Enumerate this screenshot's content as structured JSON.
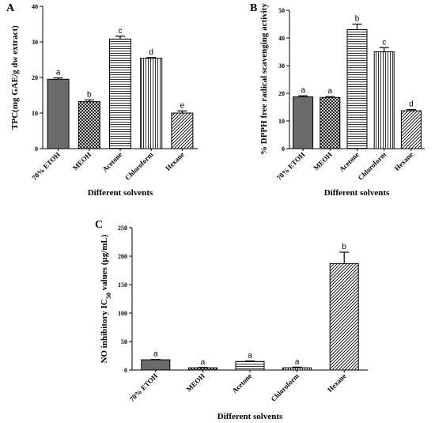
{
  "chart_data": [
    {
      "panel": "A",
      "type": "bar",
      "categories": [
        "70% ETOH",
        "MEOH",
        "Acetone",
        "Chloroform",
        "Hexane"
      ],
      "values": [
        19.5,
        13.2,
        30.8,
        25.4,
        10.0
      ],
      "errors": [
        0.4,
        0.5,
        0.8,
        0.2,
        0.6
      ],
      "labels": [
        "a",
        "b",
        "c",
        "d",
        "e"
      ],
      "patterns": [
        "solid",
        "crosshatch",
        "hlines",
        "vlines",
        "diagonal"
      ],
      "xlabel": "Different solvents",
      "ylabel": "TPC(mg GAE/g dw extract)",
      "ylim": [
        0,
        40
      ],
      "yticks": [
        0,
        10,
        20,
        30,
        40
      ]
    },
    {
      "panel": "B",
      "type": "bar",
      "categories": [
        "70% ETOH",
        "MEOH",
        "Acetone",
        "Chloroform",
        "Hexane"
      ],
      "values": [
        18.7,
        18.5,
        43.0,
        35.0,
        13.7
      ],
      "errors": [
        0.4,
        0.3,
        2.0,
        1.5,
        0.4
      ],
      "labels": [
        "a",
        "a",
        "b",
        "c",
        "d"
      ],
      "patterns": [
        "solid",
        "crosshatch",
        "hlines",
        "vlines",
        "diagonal"
      ],
      "xlabel": "Different solvents",
      "ylabel": "% DPPH free radical scavenging activity",
      "ylim": [
        0,
        50
      ],
      "yticks": [
        0,
        10,
        20,
        30,
        40,
        50
      ]
    },
    {
      "panel": "C",
      "type": "bar",
      "categories": [
        "70% ETOH",
        "MEOH",
        "Acetone",
        "Chloroform",
        "Hexane"
      ],
      "values": [
        18,
        4,
        15,
        4,
        187
      ],
      "errors": [
        0.5,
        0.5,
        1.0,
        1.0,
        20
      ],
      "labels": [
        "a",
        "a",
        "a",
        "a",
        "b"
      ],
      "patterns": [
        "solid",
        "crosshatch",
        "hlines",
        "vlines",
        "diagonal"
      ],
      "xlabel": "Different solvents",
      "ylabel": "NO inhibitory IC50 values (µg/mL)",
      "ylabel_main": "NO inhibitory IC",
      "ylabel_sub": "50",
      "ylabel_tail": " values (µg/mL)",
      "ylim": [
        0,
        250
      ],
      "yticks": [
        0,
        50,
        100,
        150,
        200,
        250
      ]
    }
  ]
}
